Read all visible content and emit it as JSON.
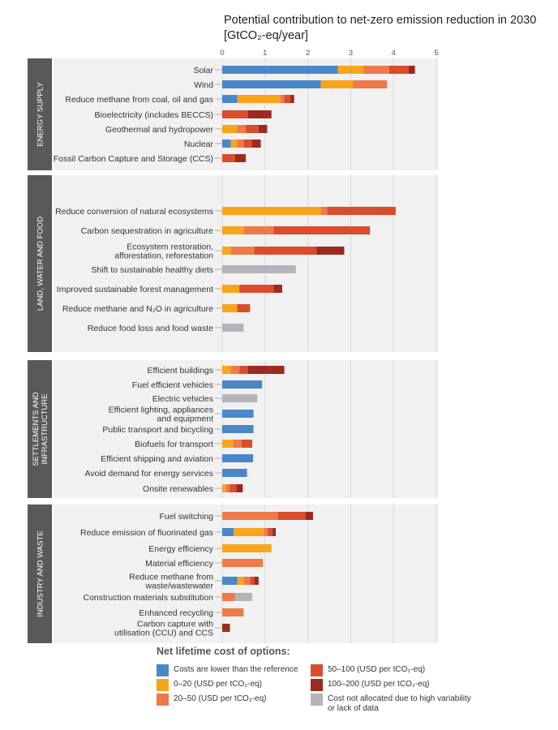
{
  "chart_data": {
    "type": "bar",
    "orientation": "horizontal",
    "stacked": true,
    "title": "Potential contribution to net-zero emission reduction in 2030 [GtCO₂-eq/year]",
    "xlim": [
      0,
      5
    ],
    "x_ticks": [
      "0",
      "1",
      "2",
      "3",
      "4",
      "5"
    ],
    "grid": true,
    "colors": {
      "neg": "#4a87c9",
      "c0_20": "#f9a51c",
      "c20_50": "#ee7a4c",
      "c50_100": "#d94c2c",
      "c100_200": "#9c2a20",
      "na": "#b4b5b9"
    },
    "groups": [
      {
        "name": "ENERGY SUPPLY",
        "items": [
          {
            "label": [
              "Solar"
            ],
            "segments": [
              {
                "c": "neg",
                "v": 2.7
              },
              {
                "c": "c0_20",
                "v": 0.6
              },
              {
                "c": "c20_50",
                "v": 0.6
              },
              {
                "c": "c50_100",
                "v": 0.45
              },
              {
                "c": "c100_200",
                "v": 0.15
              }
            ]
          },
          {
            "label": [
              "Wind"
            ],
            "segments": [
              {
                "c": "neg",
                "v": 2.3
              },
              {
                "c": "c0_20",
                "v": 0.75
              },
              {
                "c": "c20_50",
                "v": 0.8
              }
            ]
          },
          {
            "label": [
              "Reduce methane from coal, oil and gas"
            ],
            "segments": [
              {
                "c": "neg",
                "v": 0.35
              },
              {
                "c": "c0_20",
                "v": 1.0
              },
              {
                "c": "c20_50",
                "v": 0.1
              },
              {
                "c": "c50_100",
                "v": 0.15
              },
              {
                "c": "c100_200",
                "v": 0.08
              }
            ]
          },
          {
            "label": [
              "Bioelectricity (includes BECCS)"
            ],
            "segments": [
              {
                "c": "c50_100",
                "v": 0.6
              },
              {
                "c": "c100_200",
                "v": 0.55
              }
            ]
          },
          {
            "label": [
              "Geothermal and hydropower"
            ],
            "segments": [
              {
                "c": "c0_20",
                "v": 0.35
              },
              {
                "c": "c20_50",
                "v": 0.2
              },
              {
                "c": "c50_100",
                "v": 0.3
              },
              {
                "c": "c100_200",
                "v": 0.2
              }
            ]
          },
          {
            "label": [
              "Nuclear"
            ],
            "segments": [
              {
                "c": "neg",
                "v": 0.2
              },
              {
                "c": "c0_20",
                "v": 0.15
              },
              {
                "c": "c20_50",
                "v": 0.15
              },
              {
                "c": "c50_100",
                "v": 0.2
              },
              {
                "c": "c100_200",
                "v": 0.2
              }
            ]
          },
          {
            "label": [
              "Fossil Carbon Capture and Storage (CCS)"
            ],
            "segments": [
              {
                "c": "c50_100",
                "v": 0.3
              },
              {
                "c": "c100_200",
                "v": 0.25
              }
            ]
          }
        ]
      },
      {
        "name": "LAND, WATER AND FOOD",
        "items": [
          {
            "label": [
              "Reduce conversion of natural ecosystems"
            ],
            "segments": [
              {
                "c": "c0_20",
                "v": 2.3
              },
              {
                "c": "c20_50",
                "v": 0.15
              },
              {
                "c": "c50_100",
                "v": 1.6
              }
            ]
          },
          {
            "label": [
              "Carbon sequestration in agriculture"
            ],
            "segments": [
              {
                "c": "c0_20",
                "v": 0.5
              },
              {
                "c": "c20_50",
                "v": 0.7
              },
              {
                "c": "c50_100",
                "v": 2.25
              }
            ]
          },
          {
            "label": [
              "Ecosystem restoration,",
              "afforestation, reforestation"
            ],
            "segments": [
              {
                "c": "c0_20",
                "v": 0.2
              },
              {
                "c": "c20_50",
                "v": 0.55
              },
              {
                "c": "c50_100",
                "v": 1.45
              },
              {
                "c": "c100_200",
                "v": 0.65
              }
            ]
          },
          {
            "label": [
              "Shift to sustainable healthy diets"
            ],
            "segments": [
              {
                "c": "na",
                "v": 1.72
              }
            ]
          },
          {
            "label": [
              "Improved sustainable forest management"
            ],
            "segments": [
              {
                "c": "c0_20",
                "v": 0.4
              },
              {
                "c": "c50_100",
                "v": 0.8
              },
              {
                "c": "c100_200",
                "v": 0.2
              }
            ]
          },
          {
            "label": [
              "Reduce methane and N₂O in agriculture"
            ],
            "segments": [
              {
                "c": "c0_20",
                "v": 0.35
              },
              {
                "c": "c50_100",
                "v": 0.3
              }
            ]
          },
          {
            "label": [
              "Reduce food loss and food waste"
            ],
            "segments": [
              {
                "c": "na",
                "v": 0.5
              }
            ]
          }
        ]
      },
      {
        "name": "SETTLEMENTS AND INFRASTRUCTURE",
        "items": [
          {
            "label": [
              "Efficient buildings"
            ],
            "segments": [
              {
                "c": "c0_20",
                "v": 0.2
              },
              {
                "c": "c20_50",
                "v": 0.2
              },
              {
                "c": "c50_100",
                "v": 0.2
              },
              {
                "c": "c100_200",
                "v": 0.85
              }
            ]
          },
          {
            "label": [
              "Fuel efficient vehicles"
            ],
            "segments": [
              {
                "c": "neg",
                "v": 0.93
              }
            ]
          },
          {
            "label": [
              "Electric vehicles"
            ],
            "segments": [
              {
                "c": "na",
                "v": 0.82
              }
            ]
          },
          {
            "label": [
              "Efficient lighting, appliances",
              "and equipment"
            ],
            "segments": [
              {
                "c": "neg",
                "v": 0.73
              }
            ]
          },
          {
            "label": [
              "Public transport and bicycling"
            ],
            "segments": [
              {
                "c": "neg",
                "v": 0.73
              }
            ]
          },
          {
            "label": [
              "Biofuels for transport"
            ],
            "segments": [
              {
                "c": "c0_20",
                "v": 0.25
              },
              {
                "c": "c20_50",
                "v": 0.2
              },
              {
                "c": "c50_100",
                "v": 0.25
              }
            ]
          },
          {
            "label": [
              "Efficient shipping and aviation"
            ],
            "segments": [
              {
                "c": "neg",
                "v": 0.72
              }
            ]
          },
          {
            "label": [
              "Avoid demand for energy services"
            ],
            "segments": [
              {
                "c": "neg",
                "v": 0.58
              }
            ]
          },
          {
            "label": [
              "Onsite renewables"
            ],
            "segments": [
              {
                "c": "c0_20",
                "v": 0.08
              },
              {
                "c": "c20_50",
                "v": 0.1
              },
              {
                "c": "c50_100",
                "v": 0.15
              },
              {
                "c": "c100_200",
                "v": 0.15
              }
            ]
          }
        ]
      },
      {
        "name": "INDUSTRY AND WASTE",
        "items": [
          {
            "label": [
              "Fuel switching"
            ],
            "segments": [
              {
                "c": "c20_50",
                "v": 1.3
              },
              {
                "c": "c50_100",
                "v": 0.65
              },
              {
                "c": "c100_200",
                "v": 0.17
              }
            ]
          },
          {
            "label": [
              "Reduce emission of fluorinated gas"
            ],
            "segments": [
              {
                "c": "neg",
                "v": 0.27
              },
              {
                "c": "c0_20",
                "v": 0.7
              },
              {
                "c": "c20_50",
                "v": 0.1
              },
              {
                "c": "c50_100",
                "v": 0.1
              },
              {
                "c": "c100_200",
                "v": 0.08
              }
            ]
          },
          {
            "label": [
              "Energy efficiency"
            ],
            "segments": [
              {
                "c": "c0_20",
                "v": 1.15
              }
            ]
          },
          {
            "label": [
              "Material efficiency"
            ],
            "segments": [
              {
                "c": "c20_50",
                "v": 0.95
              }
            ]
          },
          {
            "label": [
              "Reduce methane from",
              "waste/wastewater"
            ],
            "segments": [
              {
                "c": "neg",
                "v": 0.35
              },
              {
                "c": "c0_20",
                "v": 0.15
              },
              {
                "c": "c20_50",
                "v": 0.15
              },
              {
                "c": "c50_100",
                "v": 0.1
              },
              {
                "c": "c100_200",
                "v": 0.1
              }
            ]
          },
          {
            "label": [
              "Construction materials substitution"
            ],
            "segments": [
              {
                "c": "c20_50",
                "v": 0.3
              },
              {
                "c": "na",
                "v": 0.4
              }
            ]
          },
          {
            "label": [
              "Enhanced recycling"
            ],
            "segments": [
              {
                "c": "c20_50",
                "v": 0.5
              }
            ]
          },
          {
            "label": [
              "Carbon capture with",
              "utilisation (CCU) and CCS"
            ],
            "segments": [
              {
                "c": "c100_200",
                "v": 0.18
              }
            ]
          }
        ]
      }
    ]
  },
  "legend": {
    "title": "Net lifetime cost of options:",
    "items": [
      {
        "c": "neg",
        "label": "Costs are lower than the reference"
      },
      {
        "c": "c0_20",
        "label": "0–20 (USD per tCO₂-eq)"
      },
      {
        "c": "c20_50",
        "label": "20–50 (USD per tCO₂-eq)"
      },
      {
        "c": "c50_100",
        "label": "50–100 (USD per tCO₂-eq)"
      },
      {
        "c": "c100_200",
        "label": "100–200 (USD per tCO₂-eq)"
      },
      {
        "c": "na",
        "label": "Cost not allocated due to high variability or lack of data"
      }
    ]
  }
}
